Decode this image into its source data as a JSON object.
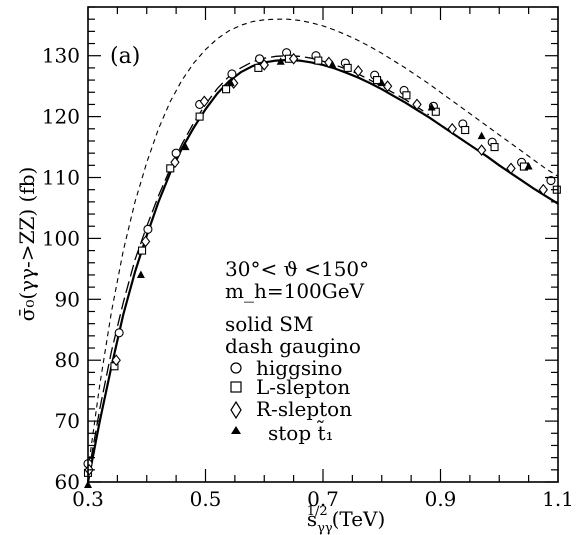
{
  "chart_data": {
    "type": "line",
    "panel_label": "(a)",
    "xlabel": {
      "base": "s",
      "sub": "γγ",
      "sup": "1/2",
      "unit": "(TeV)"
    },
    "ylabel": "σ̄₀(γγ->ZZ) (fb)",
    "xlim": [
      0.3,
      1.1
    ],
    "ylim": [
      60,
      138
    ],
    "xticks": [
      0.3,
      0.5,
      0.7,
      0.9,
      1.1
    ],
    "xtick_labels": [
      "0.3",
      "0.5",
      "0.7",
      "0.9",
      "1.1"
    ],
    "yticks": [
      60,
      70,
      80,
      90,
      100,
      110,
      120,
      130
    ],
    "ytick_labels": [
      "60",
      "70",
      "80",
      "90",
      "100",
      "110",
      "120",
      "130"
    ],
    "annotation_lines": [
      "30°< ϑ <150°",
      "m_h=100GeV"
    ],
    "legend": {
      "lines": [
        {
          "text": "solid SM",
          "style": "solid"
        },
        {
          "text": "dash gaugino",
          "style": "dashed"
        }
      ],
      "markers": [
        {
          "symbol": "circle",
          "text": "higgsino"
        },
        {
          "symbol": "square",
          "text": "L-slepton"
        },
        {
          "symbol": "diamond",
          "text": "R-slepton"
        },
        {
          "symbol": "triangle",
          "text": "stop t̃₁"
        }
      ]
    },
    "series": [
      {
        "name": "SM",
        "style": "solid",
        "x": [
          0.3,
          0.32,
          0.34,
          0.36,
          0.38,
          0.4,
          0.42,
          0.44,
          0.46,
          0.48,
          0.5,
          0.52,
          0.54,
          0.56,
          0.58,
          0.6,
          0.62,
          0.64,
          0.66,
          0.68,
          0.7,
          0.72,
          0.74,
          0.76,
          0.78,
          0.8,
          0.82,
          0.84,
          0.86,
          0.88,
          0.9,
          0.92,
          0.94,
          0.96,
          0.98,
          1.0,
          1.02,
          1.04,
          1.06,
          1.08,
          1.1
        ],
        "y": [
          60.0,
          70.0,
          79.0,
          87.5,
          94.5,
          100.5,
          106.0,
          110.8,
          114.8,
          118.2,
          121.2,
          123.8,
          125.8,
          127.3,
          128.3,
          128.9,
          129.2,
          129.3,
          129.2,
          128.9,
          128.5,
          127.9,
          127.2,
          126.4,
          125.5,
          124.5,
          123.4,
          122.3,
          121.1,
          119.9,
          118.6,
          117.3,
          116.0,
          114.7,
          113.4,
          112.0,
          110.7,
          109.4,
          108.1,
          106.9,
          105.7
        ]
      },
      {
        "name": "gaugino (long dash)",
        "style": "longdash",
        "x": [
          0.3,
          0.32,
          0.34,
          0.36,
          0.38,
          0.4,
          0.42,
          0.44,
          0.46,
          0.48,
          0.5,
          0.52,
          0.54,
          0.56,
          0.58,
          0.6,
          0.62,
          0.64,
          0.66,
          0.68,
          0.7,
          0.72,
          0.74,
          0.76,
          0.78,
          0.8,
          0.82,
          0.84,
          0.86,
          0.88
        ],
        "y": [
          61.0,
          72.0,
          81.5,
          89.5,
          96.5,
          102.0,
          107.0,
          111.5,
          115.5,
          119.0,
          122.0,
          124.6,
          126.6,
          128.0,
          129.0,
          129.6,
          129.9,
          130.0,
          129.9,
          129.6,
          129.1,
          128.5,
          127.8,
          127.0,
          126.0,
          125.0,
          123.9,
          122.8,
          121.6,
          120.3
        ]
      },
      {
        "name": "upper (short dash)",
        "style": "shortdash",
        "x": [
          0.3,
          0.32,
          0.34,
          0.36,
          0.38,
          0.4,
          0.42,
          0.44,
          0.46,
          0.48,
          0.5,
          0.52,
          0.54,
          0.56,
          0.58,
          0.6,
          0.62,
          0.64,
          0.66,
          0.68,
          0.7,
          0.72,
          0.74,
          0.76,
          0.78,
          0.8,
          0.82,
          0.84,
          0.86,
          0.88,
          0.9,
          0.92,
          0.94,
          0.96,
          0.98,
          1.0,
          1.02,
          1.04,
          1.06,
          1.08,
          1.1
        ],
        "y": [
          62.0,
          76.0,
          88.0,
          98.0,
          106.0,
          112.5,
          118.0,
          122.5,
          126.0,
          128.8,
          131.0,
          132.8,
          134.1,
          135.0,
          135.6,
          135.9,
          136.0,
          136.0,
          135.8,
          135.4,
          134.9,
          134.2,
          133.4,
          132.5,
          131.5,
          130.4,
          129.2,
          128.0,
          126.7,
          125.4,
          124.0,
          122.6,
          121.2,
          119.8,
          118.4,
          117.0,
          115.6,
          114.2,
          112.8,
          111.4,
          110.2
        ]
      }
    ],
    "markers": [
      {
        "symbol": "circle",
        "x": [
          0.3,
          0.353,
          0.402,
          0.45,
          0.49,
          0.545,
          0.592,
          0.638,
          0.688,
          0.738,
          0.788,
          0.838,
          0.888,
          0.938,
          0.988,
          1.038,
          1.088
        ],
        "y": [
          63.0,
          84.5,
          101.5,
          114.0,
          122.0,
          127.0,
          129.5,
          130.5,
          130.0,
          128.8,
          126.8,
          124.3,
          121.7,
          118.8,
          115.8,
          112.5,
          109.5
        ]
      },
      {
        "symbol": "square",
        "x": [
          0.3,
          0.345,
          0.392,
          0.44,
          0.49,
          0.535,
          0.59,
          0.642,
          0.692,
          0.742,
          0.792,
          0.842,
          0.892,
          0.942,
          0.992,
          1.042,
          1.098
        ],
        "y": [
          61.5,
          79.0,
          98.0,
          111.5,
          120.0,
          124.5,
          128.0,
          129.5,
          129.2,
          128.0,
          126.0,
          123.5,
          120.8,
          117.8,
          115.0,
          111.8,
          108.0
        ]
      },
      {
        "symbol": "diamond",
        "x": [
          0.302,
          0.348,
          0.398,
          0.448,
          0.498,
          0.548,
          0.6,
          0.65,
          0.71,
          0.76,
          0.81,
          0.86,
          0.92,
          0.97,
          1.02,
          1.075
        ],
        "y": [
          62.0,
          80.0,
          99.5,
          112.5,
          122.5,
          125.5,
          128.5,
          129.5,
          128.9,
          127.5,
          125.0,
          122.0,
          118.0,
          114.5,
          111.5,
          108.0
        ]
      },
      {
        "symbol": "triangle",
        "x": [
          0.3,
          0.39,
          0.466,
          0.543,
          0.628,
          0.716,
          0.8,
          0.885,
          0.97,
          1.05
        ],
        "y": [
          59.5,
          94.0,
          115.0,
          125.5,
          129.0,
          128.5,
          125.5,
          121.5,
          116.8,
          111.8
        ]
      }
    ]
  }
}
